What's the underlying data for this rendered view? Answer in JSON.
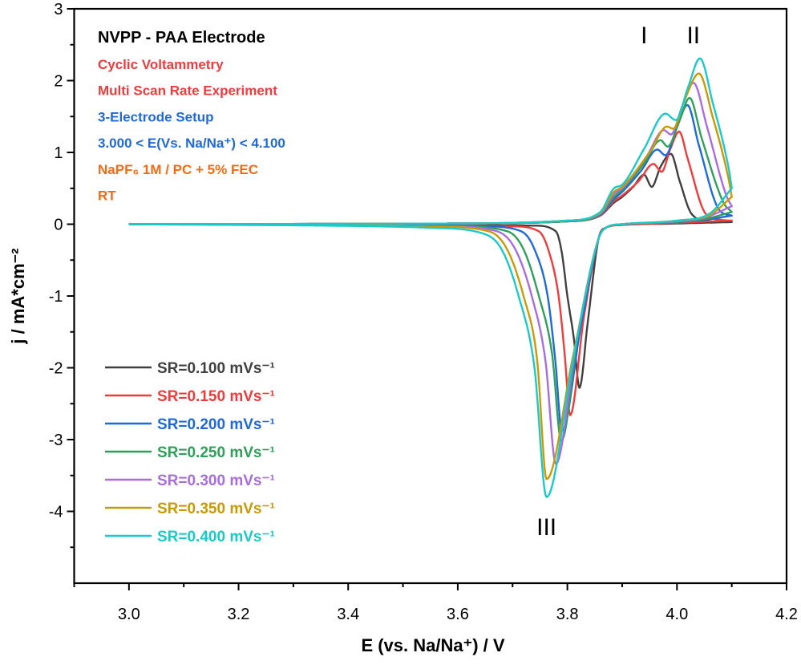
{
  "chart_data": {
    "type": "line",
    "xlabel": "E (vs. Na/Na⁺) / V",
    "ylabel": "j / mA*cm⁻²",
    "xlim": [
      2.9,
      4.2
    ],
    "ylim": [
      -5,
      3
    ],
    "xticks": [
      "3.0",
      "3.2",
      "3.4",
      "3.6",
      "3.8",
      "4.0",
      "4.2"
    ],
    "yticks": [
      "-4",
      "-3",
      "-2",
      "-1",
      "0",
      "1",
      "2",
      "3"
    ],
    "grid": false,
    "legend_placement": "bottom-left",
    "info_lines": [
      {
        "text": "NVPP - PAA Electrode",
        "color": "#000000",
        "big": true
      },
      {
        "text": "Cyclic Voltammetry",
        "color": "#ef3b3b"
      },
      {
        "text": "Multi Scan Rate Experiment",
        "color": "#ef3b3b"
      },
      {
        "text": "3-Electrode Setup",
        "color": "#1f6ad8"
      },
      {
        "text": "3.000 < E(Vs. Na/Na⁺) < 4.100",
        "color": "#1f6ad8"
      },
      {
        "text": "NaPF₆ 1M / PC + 5% FEC",
        "color": "#f26a12"
      },
      {
        "text": "RT",
        "color": "#f26a12"
      }
    ],
    "annotations": [
      {
        "text": "I",
        "x": 3.94,
        "y": 2.63
      },
      {
        "text": "II",
        "x": 4.03,
        "y": 2.63
      },
      {
        "text": "III",
        "x": 3.762,
        "y": -4.22
      }
    ],
    "series": [
      {
        "name": "SR=0.100 mVs⁻¹",
        "color": "#404040",
        "forward": [
          [
            3.0,
            0
          ],
          [
            3.6,
            0.01
          ],
          [
            3.8,
            0.04
          ],
          [
            3.86,
            0.12
          ],
          [
            3.885,
            0.3
          ],
          [
            3.9,
            0.38
          ],
          [
            3.92,
            0.52
          ],
          [
            3.94,
            0.69
          ],
          [
            3.954,
            0.52
          ],
          [
            3.97,
            0.8
          ],
          [
            3.989,
            0.98
          ],
          [
            4.005,
            0.6
          ],
          [
            4.027,
            0.14
          ],
          [
            4.06,
            0.04
          ],
          [
            4.1,
            0.03
          ]
        ],
        "reverse": [
          [
            4.1,
            0.03
          ],
          [
            4.0,
            0.01
          ],
          [
            3.9,
            -0.01
          ],
          [
            3.87,
            -0.05
          ],
          [
            3.857,
            -0.2
          ],
          [
            3.837,
            -1.38
          ],
          [
            3.822,
            -2.28
          ],
          [
            3.812,
            -1.6
          ],
          [
            3.8,
            -1.0
          ],
          [
            3.79,
            -0.4
          ],
          [
            3.779,
            -0.1
          ],
          [
            3.74,
            -0.02
          ],
          [
            3.5,
            -0.005
          ],
          [
            3.0,
            0
          ]
        ]
      },
      {
        "name": "SR=0.150 mVs⁻¹",
        "color": "#ef3b3b",
        "forward": [
          [
            3.0,
            0
          ],
          [
            3.6,
            0.01
          ],
          [
            3.8,
            0.04
          ],
          [
            3.86,
            0.12
          ],
          [
            3.885,
            0.32
          ],
          [
            3.9,
            0.4
          ],
          [
            3.93,
            0.6
          ],
          [
            3.957,
            0.84
          ],
          [
            3.972,
            0.73
          ],
          [
            3.988,
            1.05
          ],
          [
            4.004,
            1.29
          ],
          [
            4.02,
            0.9
          ],
          [
            4.052,
            0.15
          ],
          [
            4.08,
            0.06
          ],
          [
            4.1,
            0.05
          ]
        ],
        "reverse": [
          [
            4.1,
            0.05
          ],
          [
            4.0,
            0.02
          ],
          [
            3.9,
            -0.01
          ],
          [
            3.87,
            -0.05
          ],
          [
            3.857,
            -0.2
          ],
          [
            3.83,
            -1.3
          ],
          [
            3.805,
            -2.66
          ],
          [
            3.795,
            -1.8
          ],
          [
            3.784,
            -1.0
          ],
          [
            3.765,
            -0.35
          ],
          [
            3.748,
            -0.1
          ],
          [
            3.7,
            -0.03
          ],
          [
            3.5,
            -0.01
          ],
          [
            3.0,
            0
          ]
        ]
      },
      {
        "name": "SR=0.200 mVs⁻¹",
        "color": "#1f6ad8",
        "forward": [
          [
            3.0,
            0
          ],
          [
            3.6,
            0.01
          ],
          [
            3.8,
            0.04
          ],
          [
            3.86,
            0.13
          ],
          [
            3.885,
            0.35
          ],
          [
            3.9,
            0.45
          ],
          [
            3.935,
            0.75
          ],
          [
            3.964,
            1.04
          ],
          [
            3.979,
            0.96
          ],
          [
            4.0,
            1.35
          ],
          [
            4.019,
            1.66
          ],
          [
            4.04,
            1.1
          ],
          [
            4.077,
            0.2
          ],
          [
            4.1,
            0.12
          ]
        ],
        "reverse": [
          [
            4.1,
            0.12
          ],
          [
            4.05,
            0.06
          ],
          [
            4.0,
            0.03
          ],
          [
            3.9,
            0
          ],
          [
            3.87,
            -0.05
          ],
          [
            3.857,
            -0.2
          ],
          [
            3.825,
            -1.4
          ],
          [
            3.79,
            -2.88
          ],
          [
            3.778,
            -1.9
          ],
          [
            3.764,
            -1.0
          ],
          [
            3.74,
            -0.35
          ],
          [
            3.716,
            -0.1
          ],
          [
            3.65,
            -0.03
          ],
          [
            3.5,
            -0.01
          ],
          [
            3.0,
            0
          ]
        ]
      },
      {
        "name": "SR=0.250 mVs⁻¹",
        "color": "#2ea05a",
        "forward": [
          [
            3.0,
            0
          ],
          [
            3.6,
            0.01
          ],
          [
            3.8,
            0.04
          ],
          [
            3.86,
            0.14
          ],
          [
            3.885,
            0.38
          ],
          [
            3.9,
            0.48
          ],
          [
            3.94,
            0.85
          ],
          [
            3.97,
            1.17
          ],
          [
            3.983,
            1.08
          ],
          [
            4.005,
            1.45
          ],
          [
            4.023,
            1.76
          ],
          [
            4.045,
            1.2
          ],
          [
            4.085,
            0.3
          ],
          [
            4.1,
            0.17
          ]
        ],
        "reverse": [
          [
            4.1,
            0.17
          ],
          [
            4.05,
            0.07
          ],
          [
            4.0,
            0.03
          ],
          [
            3.9,
            0
          ],
          [
            3.87,
            -0.05
          ],
          [
            3.857,
            -0.2
          ],
          [
            3.82,
            -1.5
          ],
          [
            3.789,
            -3.02
          ],
          [
            3.772,
            -1.8
          ],
          [
            3.748,
            -1.0
          ],
          [
            3.72,
            -0.35
          ],
          [
            3.691,
            -0.1
          ],
          [
            3.6,
            -0.03
          ],
          [
            3.0,
            0
          ]
        ]
      },
      {
        "name": "SR=0.300 mVs⁻¹",
        "color": "#a86de0",
        "forward": [
          [
            3.0,
            0
          ],
          [
            3.6,
            0.01
          ],
          [
            3.8,
            0.05
          ],
          [
            3.86,
            0.15
          ],
          [
            3.885,
            0.42
          ],
          [
            3.9,
            0.5
          ],
          [
            3.945,
            0.95
          ],
          [
            3.976,
            1.31
          ],
          [
            3.989,
            1.25
          ],
          [
            4.01,
            1.65
          ],
          [
            4.03,
            1.97
          ],
          [
            4.055,
            1.35
          ],
          [
            4.09,
            0.4
          ],
          [
            4.1,
            0.25
          ]
        ],
        "reverse": [
          [
            4.1,
            0.25
          ],
          [
            4.05,
            0.09
          ],
          [
            4.0,
            0.04
          ],
          [
            3.9,
            0
          ],
          [
            3.87,
            -0.05
          ],
          [
            3.857,
            -0.2
          ],
          [
            3.815,
            -1.7
          ],
          [
            3.779,
            -3.34
          ],
          [
            3.76,
            -1.9
          ],
          [
            3.735,
            -1.0
          ],
          [
            3.705,
            -0.35
          ],
          [
            3.672,
            -0.1
          ],
          [
            3.58,
            -0.03
          ],
          [
            3.0,
            0
          ]
        ]
      },
      {
        "name": "SR=0.350 mVs⁻¹",
        "color": "#c99a06",
        "forward": [
          [
            3.0,
            0
          ],
          [
            3.6,
            0.01
          ],
          [
            3.8,
            0.05
          ],
          [
            3.86,
            0.16
          ],
          [
            3.885,
            0.45
          ],
          [
            3.9,
            0.52
          ],
          [
            3.95,
            1.0
          ],
          [
            3.982,
            1.36
          ],
          [
            3.993,
            1.33
          ],
          [
            4.015,
            1.75
          ],
          [
            4.04,
            2.1
          ],
          [
            4.065,
            1.5
          ],
          [
            4.095,
            0.6
          ],
          [
            4.1,
            0.38
          ]
        ],
        "reverse": [
          [
            4.1,
            0.38
          ],
          [
            4.06,
            0.13
          ],
          [
            4.0,
            0.05
          ],
          [
            3.9,
            0
          ],
          [
            3.87,
            -0.05
          ],
          [
            3.857,
            -0.2
          ],
          [
            3.81,
            -1.85
          ],
          [
            3.762,
            -3.55
          ],
          [
            3.745,
            -1.9
          ],
          [
            3.72,
            -1.0
          ],
          [
            3.69,
            -0.35
          ],
          [
            3.657,
            -0.1
          ],
          [
            3.55,
            -0.03
          ],
          [
            3.0,
            0
          ]
        ]
      },
      {
        "name": "SR=0.400 mVs⁻¹",
        "color": "#1cc9c9",
        "forward": [
          [
            3.0,
            0
          ],
          [
            3.6,
            0.01
          ],
          [
            3.8,
            0.05
          ],
          [
            3.86,
            0.17
          ],
          [
            3.885,
            0.5
          ],
          [
            3.9,
            0.55
          ],
          [
            3.94,
            1.05
          ],
          [
            3.979,
            1.54
          ],
          [
            3.998,
            1.45
          ],
          [
            4.02,
            1.9
          ],
          [
            4.042,
            2.31
          ],
          [
            4.065,
            1.7
          ],
          [
            4.095,
            0.75
          ],
          [
            4.1,
            0.5
          ]
        ],
        "reverse": [
          [
            4.1,
            0.5
          ],
          [
            4.06,
            0.15
          ],
          [
            4.0,
            0.05
          ],
          [
            3.9,
            0
          ],
          [
            3.87,
            -0.05
          ],
          [
            3.857,
            -0.2
          ],
          [
            3.81,
            -1.9
          ],
          [
            3.762,
            -3.8
          ],
          [
            3.74,
            -2.0
          ],
          [
            3.711,
            -1.0
          ],
          [
            3.68,
            -0.35
          ],
          [
            3.642,
            -0.12
          ],
          [
            3.55,
            -0.05
          ],
          [
            3.45,
            -0.03
          ],
          [
            3.0,
            0
          ]
        ]
      }
    ]
  }
}
